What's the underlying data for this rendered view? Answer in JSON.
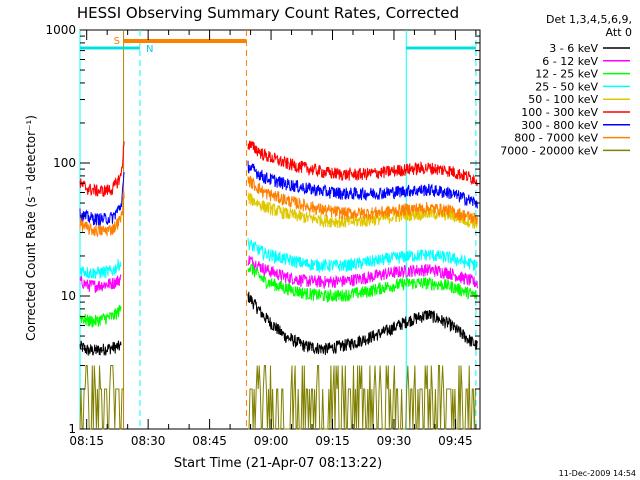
{
  "chart_data": {
    "type": "line",
    "title": "HESSI Observing Summary Count Rates, Corrected",
    "xlabel": "Start Time (21-Apr-07 08:13:22)",
    "ylabel": "Corrected Count Rate (s⁻¹ detector⁻¹)",
    "x_ticks": [
      "08:15",
      "08:30",
      "08:45",
      "09:00",
      "09:15",
      "09:30",
      "09:45"
    ],
    "y_ticks": [
      "1",
      "10",
      "100",
      "1000"
    ],
    "y_scale": "log",
    "ylim": [
      1,
      1000
    ],
    "xlim": [
      "08:13:22",
      "09:51:00"
    ],
    "legend_header": [
      "Det 1,3,4,5,6,9,",
      "Att 0"
    ],
    "footer": "11-Dec-2009 14:54",
    "flags": [
      {
        "label": "S",
        "start": "08:24",
        "end": "08:54",
        "color": "#ff8000"
      },
      {
        "label": "N",
        "start": "08:28",
        "end": "08:28",
        "color": "#00c8ff"
      }
    ],
    "attenuator_bars": [
      {
        "start": "08:13:22",
        "end": "08:28",
        "color": "#00e0e0"
      },
      {
        "start": "09:33",
        "end": "09:50",
        "color": "#00e0e0"
      }
    ],
    "markers": [
      {
        "time": "08:13:22",
        "color": "#00ffff",
        "style": "solid"
      },
      {
        "time": "08:24",
        "color": "#c08000",
        "style": "solid"
      },
      {
        "time": "08:28",
        "color": "#00ffff",
        "style": "dashed"
      },
      {
        "time": "08:54",
        "color": "#ff8000",
        "style": "dashed"
      },
      {
        "time": "09:33",
        "color": "#00ffff",
        "style": "solid"
      },
      {
        "time": "09:50",
        "color": "#00ffff",
        "style": "dashed"
      }
    ],
    "data_gap": [
      "08:24",
      "08:54"
    ],
    "series": [
      {
        "name": "3 - 6 keV",
        "color": "#000000",
        "pre": [
          [
            0,
            4.2
          ],
          [
            2,
            3.9
          ],
          [
            4,
            3.9
          ],
          [
            6,
            4.0
          ],
          [
            8,
            4.1
          ],
          [
            10,
            4.2
          ]
        ],
        "post": [
          [
            41,
            10
          ],
          [
            45,
            7
          ],
          [
            50,
            5
          ],
          [
            55,
            4.2
          ],
          [
            60,
            4
          ],
          [
            65,
            4.3
          ],
          [
            70,
            4.8
          ],
          [
            75,
            5.5
          ],
          [
            80,
            6.5
          ],
          [
            85,
            7.3
          ],
          [
            90,
            6.2
          ],
          [
            97,
            4.2
          ]
        ]
      },
      {
        "name": "6 - 12 keV",
        "color": "#ff00ff",
        "pre": [
          [
            0,
            13
          ],
          [
            2,
            12
          ],
          [
            4,
            12
          ],
          [
            6,
            12.2
          ],
          [
            8,
            12.5
          ],
          [
            10,
            13.5
          ]
        ],
        "post": [
          [
            41,
            19
          ],
          [
            45,
            16
          ],
          [
            50,
            14
          ],
          [
            55,
            13
          ],
          [
            60,
            12.8
          ],
          [
            65,
            13
          ],
          [
            70,
            13.8
          ],
          [
            75,
            14.8
          ],
          [
            80,
            15.5
          ],
          [
            85,
            15.8
          ],
          [
            90,
            15
          ],
          [
            97,
            12.5
          ]
        ]
      },
      {
        "name": "12 - 25 keV",
        "color": "#00ff00",
        "pre": [
          [
            0,
            7
          ],
          [
            2,
            6.5
          ],
          [
            4,
            6.5
          ],
          [
            6,
            6.8
          ],
          [
            8,
            7
          ],
          [
            10,
            8
          ]
        ],
        "post": [
          [
            41,
            17
          ],
          [
            45,
            13
          ],
          [
            50,
            11.5
          ],
          [
            55,
            10.5
          ],
          [
            60,
            10
          ],
          [
            65,
            10.2
          ],
          [
            70,
            10.8
          ],
          [
            75,
            11.8
          ],
          [
            80,
            12.5
          ],
          [
            85,
            12.5
          ],
          [
            90,
            12
          ],
          [
            97,
            10
          ]
        ]
      },
      {
        "name": "25 - 50 keV",
        "color": "#00ffff",
        "pre": [
          [
            0,
            16
          ],
          [
            2,
            15
          ],
          [
            4,
            15
          ],
          [
            6,
            15.2
          ],
          [
            8,
            15.5
          ],
          [
            10,
            18
          ]
        ],
        "post": [
          [
            41,
            25
          ],
          [
            45,
            21
          ],
          [
            50,
            19
          ],
          [
            55,
            17.5
          ],
          [
            60,
            17
          ],
          [
            65,
            17
          ],
          [
            70,
            18
          ],
          [
            75,
            19
          ],
          [
            80,
            20
          ],
          [
            85,
            20.5
          ],
          [
            90,
            19.5
          ],
          [
            97,
            17
          ]
        ]
      },
      {
        "name": "50 - 100 keV",
        "color": "#e0c800",
        "pre": [],
        "post": [
          [
            41,
            55
          ],
          [
            45,
            47
          ],
          [
            50,
            42
          ],
          [
            55,
            39
          ],
          [
            60,
            37
          ],
          [
            65,
            36
          ],
          [
            70,
            37
          ],
          [
            75,
            39
          ],
          [
            80,
            41
          ],
          [
            85,
            42
          ],
          [
            90,
            41
          ],
          [
            97,
            35
          ]
        ]
      },
      {
        "name": "100 - 300 keV",
        "color": "#ff0000",
        "pre": [
          [
            0,
            70
          ],
          [
            2,
            64
          ],
          [
            4,
            62
          ],
          [
            6,
            62
          ],
          [
            8,
            64
          ],
          [
            10,
            80
          ],
          [
            10.8,
            140
          ]
        ],
        "post": [
          [
            41,
            140
          ],
          [
            45,
            115
          ],
          [
            50,
            100
          ],
          [
            55,
            92
          ],
          [
            60,
            85
          ],
          [
            65,
            82
          ],
          [
            70,
            83
          ],
          [
            75,
            86
          ],
          [
            80,
            90
          ],
          [
            85,
            92
          ],
          [
            90,
            88
          ],
          [
            97,
            75
          ]
        ]
      },
      {
        "name": "300 - 800 keV",
        "color": "#0000ff",
        "pre": [
          [
            0,
            41
          ],
          [
            2,
            39
          ],
          [
            4,
            38
          ],
          [
            6,
            38
          ],
          [
            8,
            39
          ],
          [
            10,
            48
          ],
          [
            10.8,
            80
          ]
        ],
        "post": [
          [
            41,
            95
          ],
          [
            45,
            78
          ],
          [
            50,
            70
          ],
          [
            55,
            65
          ],
          [
            60,
            61
          ],
          [
            65,
            59
          ],
          [
            70,
            59
          ],
          [
            75,
            60
          ],
          [
            80,
            62
          ],
          [
            85,
            63
          ],
          [
            90,
            60
          ],
          [
            97,
            50
          ]
        ]
      },
      {
        "name": "800 - 7000 keV",
        "color": "#ff8000",
        "pre": [
          [
            0,
            35
          ],
          [
            2,
            32
          ],
          [
            4,
            31
          ],
          [
            6,
            31
          ],
          [
            8,
            32
          ],
          [
            10,
            38
          ],
          [
            10.8,
            60
          ]
        ],
        "post": [
          [
            41,
            75
          ],
          [
            45,
            60
          ],
          [
            50,
            53
          ],
          [
            55,
            48
          ],
          [
            60,
            44
          ],
          [
            65,
            42
          ],
          [
            70,
            42
          ],
          [
            75,
            43
          ],
          [
            80,
            45
          ],
          [
            85,
            46
          ],
          [
            90,
            44
          ],
          [
            97,
            38
          ]
        ]
      },
      {
        "name": "7000 - 20000 keV",
        "color": "#808000",
        "pre": [
          [
            0,
            2
          ],
          [
            10.8,
            2
          ]
        ],
        "post": [
          [
            41,
            2
          ],
          [
            97,
            2
          ]
        ]
      }
    ]
  }
}
